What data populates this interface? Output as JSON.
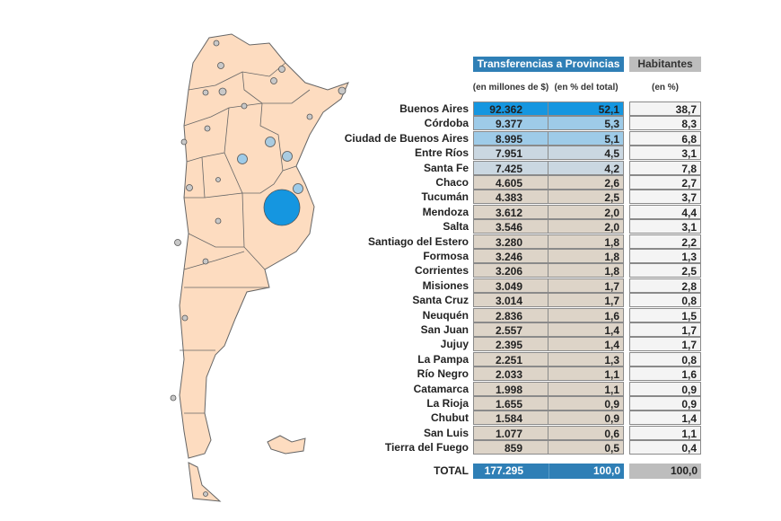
{
  "chart_data": {
    "type": "table",
    "title": "Transferencias a Provincias",
    "title2": "Habitantes",
    "col_labels": [
      "(en millones de $)",
      "(en % del total)",
      "(en %)"
    ],
    "rows": [
      {
        "name": "Buenos Aires",
        "millones": "92.362",
        "pct": "52,1",
        "hab": "38,7"
      },
      {
        "name": "Córdoba",
        "millones": "9.377",
        "pct": "5,3",
        "hab": "8,3"
      },
      {
        "name": "Ciudad de Buenos Aires",
        "millones": "8.995",
        "pct": "5,1",
        "hab": "6,8"
      },
      {
        "name": "Entre Ríos",
        "millones": "7.951",
        "pct": "4,5",
        "hab": "3,1"
      },
      {
        "name": "Santa Fe",
        "millones": "7.425",
        "pct": "4,2",
        "hab": "7,8"
      },
      {
        "name": "Chaco",
        "millones": "4.605",
        "pct": "2,6",
        "hab": "2,7"
      },
      {
        "name": "Tucumán",
        "millones": "4.383",
        "pct": "2,5",
        "hab": "3,7"
      },
      {
        "name": "Mendoza",
        "millones": "3.612",
        "pct": "2,0",
        "hab": "4,4"
      },
      {
        "name": "Salta",
        "millones": "3.546",
        "pct": "2,0",
        "hab": "3,1"
      },
      {
        "name": "Santiago del Estero",
        "millones": "3.280",
        "pct": "1,8",
        "hab": "2,2"
      },
      {
        "name": "Formosa",
        "millones": "3.246",
        "pct": "1,8",
        "hab": "1,3"
      },
      {
        "name": "Corrientes",
        "millones": "3.206",
        "pct": "1,8",
        "hab": "2,5"
      },
      {
        "name": "Misiones",
        "millones": "3.049",
        "pct": "1,7",
        "hab": "2,8"
      },
      {
        "name": "Santa Cruz",
        "millones": "3.014",
        "pct": "1,7",
        "hab": "0,8"
      },
      {
        "name": "Neuquén",
        "millones": "2.836",
        "pct": "1,6",
        "hab": "1,5"
      },
      {
        "name": "San Juan",
        "millones": "2.557",
        "pct": "1,4",
        "hab": "1,7"
      },
      {
        "name": "Jujuy",
        "millones": "2.395",
        "pct": "1,4",
        "hab": "1,7"
      },
      {
        "name": "La Pampa",
        "millones": "2.251",
        "pct": "1,3",
        "hab": "0,8"
      },
      {
        "name": "Río Negro",
        "millones": "2.033",
        "pct": "1,1",
        "hab": "1,6"
      },
      {
        "name": "Catamarca",
        "millones": "1.998",
        "pct": "1,1",
        "hab": "0,9"
      },
      {
        "name": "La Rioja",
        "millones": "1.655",
        "pct": "0,9",
        "hab": "0,9"
      },
      {
        "name": "Chubut",
        "millones": "1.584",
        "pct": "0,9",
        "hab": "1,4"
      },
      {
        "name": "San Luis",
        "millones": "1.077",
        "pct": "0,6",
        "hab": "1,1"
      },
      {
        "name": "Tierra del Fuego",
        "millones": "859",
        "pct": "0,5",
        "hab": "0,4"
      }
    ],
    "total": {
      "name": "TOTAL",
      "millones": "177.295",
      "pct": "100,0",
      "hab": "100,0"
    }
  },
  "colors": {
    "header": "#2f7fb6",
    "hab_header": "#bdbdbd",
    "top": "#1596e0",
    "high": "#9ecbe8",
    "mid": "#cad7e1",
    "low": "#ddd4c8",
    "map_fill": "#fddcc0"
  }
}
